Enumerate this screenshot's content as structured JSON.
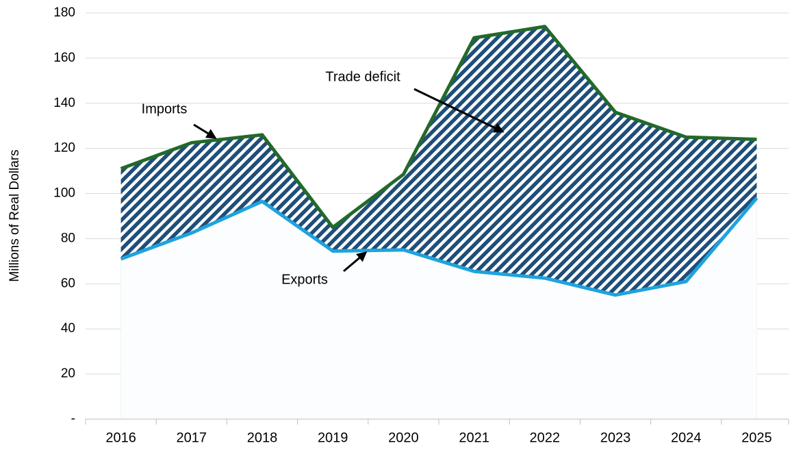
{
  "chart_data": {
    "type": "line",
    "y_label": "Millions of Real Dollars",
    "categories": [
      "2016",
      "2017",
      "2018",
      "2019",
      "2020",
      "2021",
      "2022",
      "2023",
      "2024",
      "2025"
    ],
    "series": [
      {
        "name": "Imports",
        "color": "#23692a",
        "values": [
          111,
          122.5,
          126,
          85,
          108.5,
          169,
          174,
          136,
          125,
          124
        ]
      },
      {
        "name": "Exports",
        "color": "#1ea3dd",
        "values": [
          71,
          82.5,
          96.5,
          74.5,
          75,
          65.5,
          62.5,
          55,
          61,
          98
        ]
      }
    ],
    "fill_between": {
      "name": "Trade deficit",
      "color": "#1f4e79"
    },
    "ylim": [
      0,
      180
    ],
    "yticks": [
      {
        "value": 0,
        "label": "-"
      },
      20,
      40,
      60,
      80,
      100,
      120,
      140,
      160,
      180
    ],
    "grid": true
  }
}
